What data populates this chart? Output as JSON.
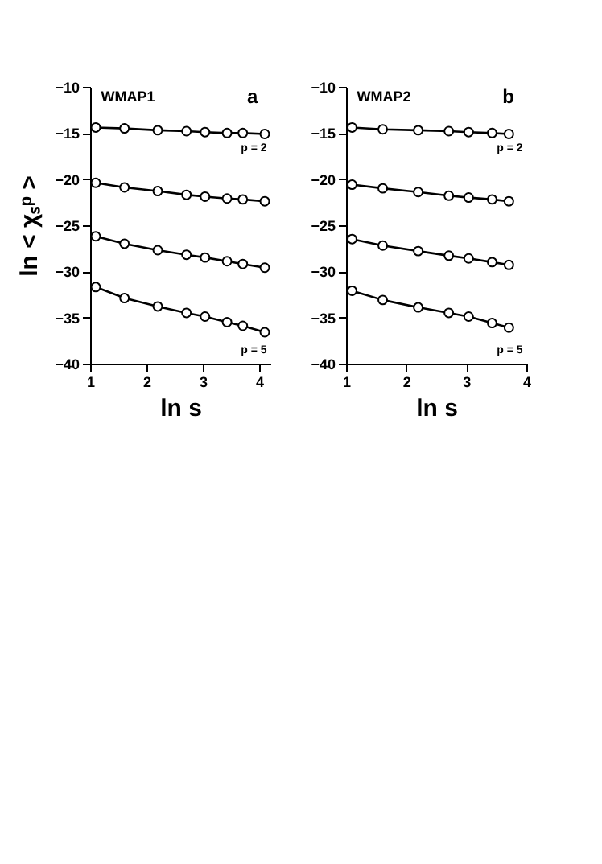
{
  "chart_data": [
    {
      "type": "line",
      "xlabel": "ln s",
      "ylabel": "ln < χₛᵖ >",
      "xlim": [
        1,
        4.2
      ],
      "xticks": [
        1,
        2,
        3,
        4
      ],
      "ylim": [
        -40,
        -10
      ],
      "yticks": [
        -40,
        -35,
        -30,
        -25,
        -20,
        -15,
        -10
      ],
      "marker": "circle",
      "line_style": "solid",
      "x": [
        1.1,
        1.61,
        2.2,
        2.71,
        3.04,
        3.43,
        3.71,
        4.1
      ],
      "series": [
        {
          "color": "#000000",
          "values": [
            -14.4,
            -14.5,
            -14.7,
            -14.8,
            -14.9,
            -15.0,
            -15.0,
            -15.1
          ]
        },
        {
          "color": "#000000",
          "values": [
            -20.4,
            -20.9,
            -21.3,
            -21.7,
            -21.9,
            -22.1,
            -22.2,
            -22.4
          ]
        },
        {
          "color": "#000000",
          "values": [
            -26.2,
            -27.0,
            -27.7,
            -28.2,
            -28.5,
            -28.9,
            -29.2,
            -29.6
          ]
        },
        {
          "color": "#000000",
          "values": [
            -31.7,
            -32.9,
            -33.8,
            -34.5,
            -34.9,
            -35.5,
            -35.9,
            -36.6
          ]
        }
      ],
      "annotations": [
        "WMAP1",
        "a",
        "p = 2",
        "p = 5"
      ]
    },
    {
      "type": "line",
      "xlabel": "ln s",
      "xlim": [
        1,
        4
      ],
      "xticks": [
        1,
        2,
        3,
        4
      ],
      "ylim": [
        -40,
        -10
      ],
      "yticks": [
        -40,
        -35,
        -30,
        -25,
        -20,
        -15,
        -10
      ],
      "marker": "circle",
      "line_style": "solid",
      "x": [
        1.1,
        1.61,
        2.2,
        2.71,
        3.04,
        3.43,
        3.71
      ],
      "series": [
        {
          "color": "#000000",
          "values": [
            -14.4,
            -14.6,
            -14.7,
            -14.8,
            -14.9,
            -15.0,
            -15.1
          ]
        },
        {
          "color": "#000000",
          "values": [
            -20.6,
            -21.0,
            -21.4,
            -21.8,
            -22.0,
            -22.2,
            -22.4
          ]
        },
        {
          "color": "#000000",
          "values": [
            -26.5,
            -27.2,
            -27.8,
            -28.3,
            -28.6,
            -29.0,
            -29.3
          ]
        },
        {
          "color": "#000000",
          "values": [
            -32.1,
            -33.1,
            -33.9,
            -34.5,
            -34.9,
            -35.6,
            -36.1
          ]
        }
      ],
      "annotations": [
        "WMAP2",
        "b",
        "p = 2",
        "p = 5"
      ]
    }
  ]
}
